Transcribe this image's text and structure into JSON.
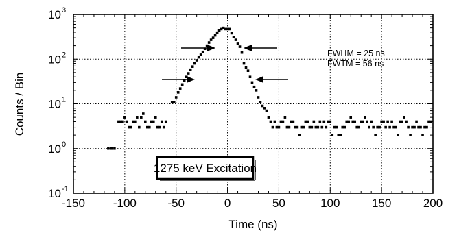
{
  "chart_data": {
    "type": "scatter",
    "xlabel": "Time (ns)",
    "ylabel": "Counts / Bin",
    "xlim": [
      -150,
      200
    ],
    "ylim": [
      0.1,
      1000
    ],
    "yscale": "log",
    "grid": true,
    "x_ticks": [
      -150,
      -100,
      -50,
      0,
      50,
      100,
      150,
      200
    ],
    "x_tick_labels": [
      "-150",
      "-100",
      "-50",
      "0",
      "50",
      "100",
      "150",
      "200"
    ],
    "y_ticks": [
      0.1,
      1,
      10,
      100,
      1000
    ],
    "y_tick_labels": [
      {
        "base": "10",
        "exp": "-1"
      },
      {
        "base": "10",
        "exp": "0"
      },
      {
        "base": "10",
        "exp": "1"
      },
      {
        "base": "10",
        "exp": "2"
      },
      {
        "base": "10",
        "exp": "3"
      }
    ],
    "annotations": {
      "fwhm": "FWHM = 25 ns",
      "fwtm": "FWTM = 56 ns",
      "box": "1275 keV Excitation"
    },
    "series": [
      {
        "points": [
          [
            -116,
            1
          ],
          [
            -113,
            1
          ],
          [
            -110,
            1
          ],
          [
            -106,
            4
          ],
          [
            -104,
            4
          ],
          [
            -102,
            4
          ],
          [
            -100,
            5
          ],
          [
            -98,
            4
          ],
          [
            -96,
            3
          ],
          [
            -94,
            3
          ],
          [
            -92,
            4
          ],
          [
            -90,
            4
          ],
          [
            -88,
            5
          ],
          [
            -86,
            3
          ],
          [
            -84,
            5
          ],
          [
            -82,
            6
          ],
          [
            -80,
            4
          ],
          [
            -78,
            3
          ],
          [
            -76,
            3
          ],
          [
            -74,
            4
          ],
          [
            -72,
            4
          ],
          [
            -70,
            5
          ],
          [
            -68,
            3
          ],
          [
            -66,
            3
          ],
          [
            -64,
            4
          ],
          [
            -62,
            3
          ],
          [
            -60,
            4
          ],
          [
            -54,
            11
          ],
          [
            -52,
            11
          ],
          [
            -50,
            14
          ],
          [
            -48,
            18
          ],
          [
            -46,
            22
          ],
          [
            -44,
            27
          ],
          [
            -42,
            33
          ],
          [
            -40,
            40
          ],
          [
            -38,
            48
          ],
          [
            -36,
            58
          ],
          [
            -34,
            68
          ],
          [
            -32,
            80
          ],
          [
            -30,
            94
          ],
          [
            -28,
            110
          ],
          [
            -26,
            125
          ],
          [
            -24,
            145
          ],
          [
            -22,
            170
          ],
          [
            -20,
            200
          ],
          [
            -18,
            235
          ],
          [
            -16,
            270
          ],
          [
            -14,
            300
          ],
          [
            -12,
            340
          ],
          [
            -10,
            390
          ],
          [
            -8,
            440
          ],
          [
            -6,
            470
          ],
          [
            -4,
            500
          ],
          [
            -2,
            470
          ],
          [
            0,
            470
          ],
          [
            2,
            470
          ],
          [
            4,
            380
          ],
          [
            6,
            310
          ],
          [
            8,
            270
          ],
          [
            10,
            220
          ],
          [
            12,
            190
          ],
          [
            14,
            140
          ],
          [
            16,
            80
          ],
          [
            18,
            65
          ],
          [
            20,
            55
          ],
          [
            22,
            40
          ],
          [
            24,
            30
          ],
          [
            26,
            24
          ],
          [
            28,
            20
          ],
          [
            30,
            14
          ],
          [
            32,
            11
          ],
          [
            34,
            9
          ],
          [
            36,
            8
          ],
          [
            38,
            7
          ],
          [
            40,
            5
          ],
          [
            42,
            4
          ],
          [
            44,
            3
          ],
          [
            46,
            4
          ],
          [
            48,
            3
          ],
          [
            50,
            3
          ],
          [
            52,
            4
          ],
          [
            54,
            4
          ],
          [
            56,
            5
          ],
          [
            58,
            3
          ],
          [
            60,
            3
          ],
          [
            62,
            4
          ],
          [
            64,
            4
          ],
          [
            66,
            3
          ],
          [
            68,
            3
          ],
          [
            70,
            2
          ],
          [
            72,
            3
          ],
          [
            74,
            3
          ],
          [
            76,
            4
          ],
          [
            78,
            4
          ],
          [
            80,
            3
          ],
          [
            82,
            3
          ],
          [
            84,
            4
          ],
          [
            86,
            3
          ],
          [
            88,
            3
          ],
          [
            90,
            4
          ],
          [
            92,
            3
          ],
          [
            94,
            4
          ],
          [
            96,
            3
          ],
          [
            98,
            4
          ],
          [
            100,
            4
          ],
          [
            102,
            2
          ],
          [
            104,
            3
          ],
          [
            106,
            3
          ],
          [
            108,
            2
          ],
          [
            110,
            2
          ],
          [
            112,
            3
          ],
          [
            114,
            3
          ],
          [
            116,
            4
          ],
          [
            118,
            4
          ],
          [
            120,
            5
          ],
          [
            122,
            4
          ],
          [
            124,
            4
          ],
          [
            126,
            3
          ],
          [
            128,
            3
          ],
          [
            130,
            4
          ],
          [
            132,
            4
          ],
          [
            134,
            5
          ],
          [
            136,
            4
          ],
          [
            138,
            3
          ],
          [
            140,
            4
          ],
          [
            142,
            3
          ],
          [
            144,
            2
          ],
          [
            146,
            3
          ],
          [
            148,
            3
          ],
          [
            150,
            4
          ],
          [
            152,
            4
          ],
          [
            154,
            3
          ],
          [
            156,
            4
          ],
          [
            158,
            3
          ],
          [
            160,
            4
          ],
          [
            162,
            3
          ],
          [
            164,
            3
          ],
          [
            166,
            2
          ],
          [
            168,
            4
          ],
          [
            170,
            4
          ],
          [
            172,
            5
          ],
          [
            174,
            4
          ],
          [
            176,
            3
          ],
          [
            178,
            2
          ],
          [
            180,
            3
          ],
          [
            182,
            3
          ],
          [
            184,
            4
          ],
          [
            186,
            3
          ],
          [
            188,
            3
          ],
          [
            190,
            2
          ],
          [
            192,
            3
          ],
          [
            194,
            3
          ],
          [
            196,
            4
          ],
          [
            198,
            4
          ]
        ]
      }
    ]
  }
}
